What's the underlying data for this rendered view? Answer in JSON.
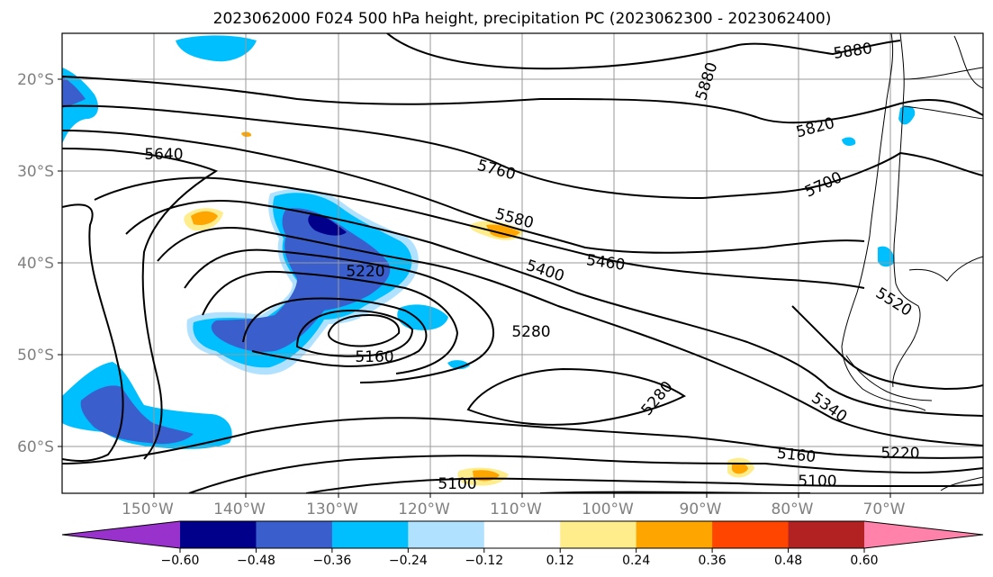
{
  "title": "2023062000 F024 500 hPa height, precipitation PC (2023062300 - 2023062400)",
  "lon_ticks": [
    "150°W",
    "140°W",
    "130°W",
    "120°W",
    "110°W",
    "100°W",
    "90°W",
    "80°W",
    "70°W"
  ],
  "lat_ticks": [
    "20°S",
    "30°S",
    "40°S",
    "50°S",
    "60°S"
  ],
  "colorbar": {
    "colors": [
      "#9932cc",
      "#00008b",
      "#3a5fcd",
      "#00bfff",
      "#b0e2ff",
      "#ffffff",
      "#ffec8b",
      "#ffa500",
      "#ff4500",
      "#b22222",
      "#ff82ab"
    ],
    "tick_labels": [
      "−0.60",
      "−0.48",
      "−0.36",
      "−0.24",
      "−0.12",
      "0.12",
      "0.24",
      "0.36",
      "0.48",
      "0.60"
    ]
  },
  "contour_labels": [
    {
      "id": "c5880a",
      "text": "5880"
    },
    {
      "id": "c5880b",
      "text": "5880"
    },
    {
      "id": "c5820",
      "text": "5820"
    },
    {
      "id": "c5760",
      "text": "5760"
    },
    {
      "id": "c5700",
      "text": "5700"
    },
    {
      "id": "c5640",
      "text": "5640"
    },
    {
      "id": "c5580",
      "text": "5580"
    },
    {
      "id": "c5520",
      "text": "5520"
    },
    {
      "id": "c5460",
      "text": "5460"
    },
    {
      "id": "c5400",
      "text": "5400"
    },
    {
      "id": "c5340",
      "text": "5340"
    },
    {
      "id": "c5280a",
      "text": "5280"
    },
    {
      "id": "c5280b",
      "text": "5280"
    },
    {
      "id": "c5220a",
      "text": "5220"
    },
    {
      "id": "c5220b",
      "text": "5220"
    },
    {
      "id": "c5160a",
      "text": "5160"
    },
    {
      "id": "c5160b",
      "text": "5160"
    },
    {
      "id": "c5100a",
      "text": "5100"
    },
    {
      "id": "c5100b",
      "text": "5100"
    }
  ]
}
